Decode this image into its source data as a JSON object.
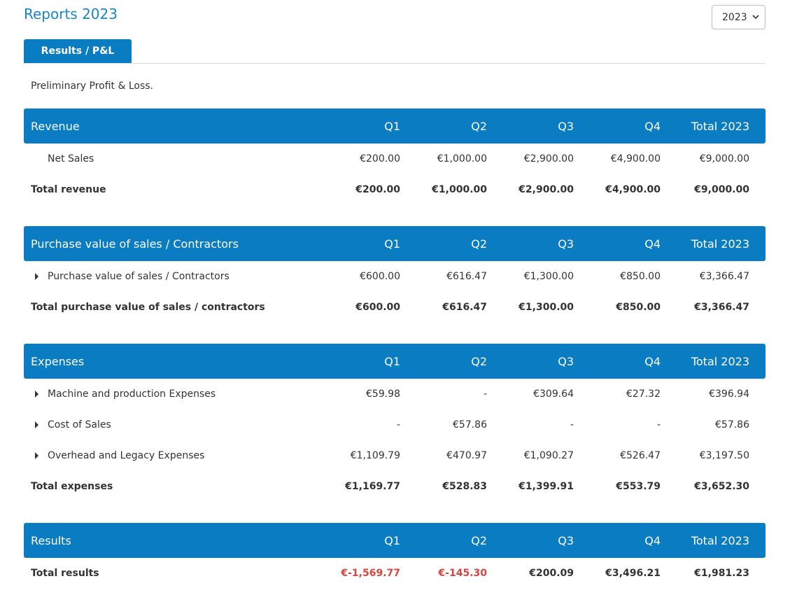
{
  "header": {
    "title": "Reports 2023",
    "year_select": "2023"
  },
  "tabs": [
    {
      "label": "Results / P&L",
      "active": true
    }
  ],
  "subtitle": "Preliminary Profit & Loss.",
  "columns": {
    "q1": "Q1",
    "q2": "Q2",
    "q3": "Q3",
    "q4": "Q4",
    "total": "Total 2023"
  },
  "sections": {
    "revenue": {
      "title": "Revenue",
      "rows": [
        {
          "label": "Net Sales",
          "q1": "€200.00",
          "q2": "€1,000.00",
          "q3": "€2,900.00",
          "q4": "€4,900.00",
          "total": "€9,000.00"
        }
      ],
      "total": {
        "label": "Total revenue",
        "q1": "€200.00",
        "q2": "€1,000.00",
        "q3": "€2,900.00",
        "q4": "€4,900.00",
        "total": "€9,000.00"
      }
    },
    "purchase": {
      "title": "Purchase value of sales / Contractors",
      "rows": [
        {
          "label": "Purchase value of sales / Contractors",
          "q1": "€600.00",
          "q2": "€616.47",
          "q3": "€1,300.00",
          "q4": "€850.00",
          "total": "€3,366.47"
        }
      ],
      "total": {
        "label": "Total purchase value of sales / contractors",
        "q1": "€600.00",
        "q2": "€616.47",
        "q3": "€1,300.00",
        "q4": "€850.00",
        "total": "€3,366.47"
      }
    },
    "expenses": {
      "title": "Expenses",
      "rows": [
        {
          "label": "Machine and production Expenses",
          "q1": "€59.98",
          "q2": "-",
          "q3": "€309.64",
          "q4": "€27.32",
          "total": "€396.94"
        },
        {
          "label": "Cost of Sales",
          "q1": "-",
          "q2": "€57.86",
          "q3": "-",
          "q4": "-",
          "total": "€57.86"
        },
        {
          "label": "Overhead and Legacy Expenses",
          "q1": "€1,109.79",
          "q2": "€470.97",
          "q3": "€1,090.27",
          "q4": "€526.47",
          "total": "€3,197.50"
        }
      ],
      "total": {
        "label": "Total expenses",
        "q1": "€1,169.77",
        "q2": "€528.83",
        "q3": "€1,399.91",
        "q4": "€553.79",
        "total": "€3,652.30"
      }
    },
    "results": {
      "title": "Results",
      "total": {
        "label": "Total results",
        "q1": "€-1,569.77",
        "q2": "€-145.30",
        "q3": "€200.09",
        "q4": "€3,496.21",
        "total": "€1,981.23"
      }
    }
  },
  "colors": {
    "accent": "#0a7cc2",
    "title": "#1a85c8",
    "negative": "#d9443d"
  }
}
